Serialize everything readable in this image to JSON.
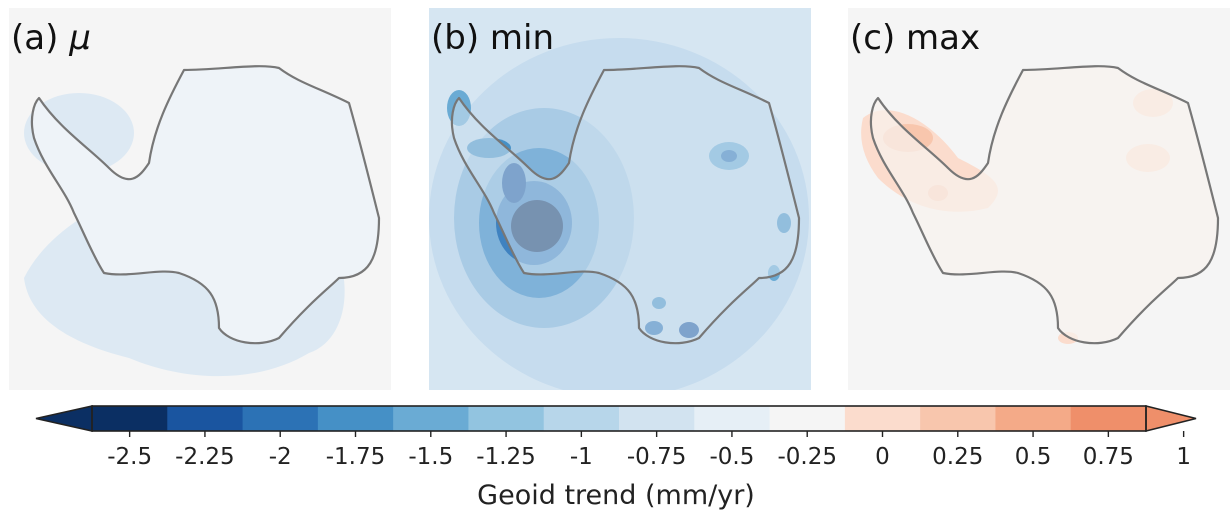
{
  "panels": [
    {
      "id": "a",
      "label": "(a)",
      "symbol": "μ"
    },
    {
      "id": "b",
      "label": "(b) min",
      "symbol": ""
    },
    {
      "id": "c",
      "label": "(c) max",
      "symbol": ""
    }
  ],
  "colorbar": {
    "label": "Geoid trend (mm/yr)",
    "ticks": [
      "-2.5",
      "-2.25",
      "-2",
      "-1.75",
      "-1.5",
      "-1.25",
      "-1",
      "-0.75",
      "-0.5",
      "-0.25",
      "0",
      "0.25",
      "0.5",
      "0.75",
      "1"
    ],
    "colors": [
      "#0b2f63",
      "#1a55a0",
      "#2c72b5",
      "#4590c6",
      "#6aabd4",
      "#92c4e0",
      "#b7d6ea",
      "#d2e3f0",
      "#e6eff6",
      "#f5f5f5",
      "#fbdccd",
      "#f8c6ad",
      "#f4aa88",
      "#ef8f6a"
    ],
    "extend": "both",
    "colormap": "RdBu_r"
  }
}
